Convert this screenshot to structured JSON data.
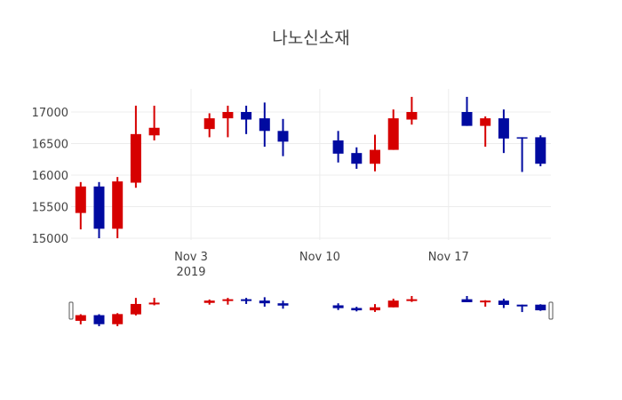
{
  "chart_data": {
    "type": "candlestick",
    "title": "나노신소재",
    "xlabel": "",
    "ylabel": "",
    "ylim": [
      14950,
      17350
    ],
    "yticks": [
      15000,
      15500,
      16000,
      16500,
      17000
    ],
    "xticks": [
      {
        "date": "2019-11-03",
        "label": "Nov 3",
        "sublabel": "2019"
      },
      {
        "date": "2019-11-10",
        "label": "Nov 10",
        "sublabel": ""
      },
      {
        "date": "2019-11-17",
        "label": "Nov 17",
        "sublabel": ""
      }
    ],
    "grid": true,
    "increasing_color": "#d60000",
    "decreasing_color": "#000aa0",
    "rangeslider": true,
    "candles": [
      {
        "date": "2019-10-28",
        "open": 15400,
        "high": 15890,
        "low": 15140,
        "close": 15820
      },
      {
        "date": "2019-10-29",
        "open": 15820,
        "high": 15890,
        "low": 15000,
        "close": 15150
      },
      {
        "date": "2019-10-30",
        "open": 15150,
        "high": 15970,
        "low": 15000,
        "close": 15900
      },
      {
        "date": "2019-10-31",
        "open": 15880,
        "high": 17100,
        "low": 15800,
        "close": 16650
      },
      {
        "date": "2019-11-01",
        "open": 16630,
        "high": 17100,
        "low": 16550,
        "close": 16750
      },
      {
        "date": "2019-11-04",
        "open": 16730,
        "high": 16980,
        "low": 16600,
        "close": 16900
      },
      {
        "date": "2019-11-05",
        "open": 16900,
        "high": 17100,
        "low": 16600,
        "close": 17000
      },
      {
        "date": "2019-11-06",
        "open": 17000,
        "high": 17100,
        "low": 16650,
        "close": 16880
      },
      {
        "date": "2019-11-07",
        "open": 16900,
        "high": 17150,
        "low": 16450,
        "close": 16700
      },
      {
        "date": "2019-11-08",
        "open": 16700,
        "high": 16890,
        "low": 16300,
        "close": 16530
      },
      {
        "date": "2019-11-11",
        "open": 16550,
        "high": 16700,
        "low": 16200,
        "close": 16340
      },
      {
        "date": "2019-11-12",
        "open": 16350,
        "high": 16440,
        "low": 16100,
        "close": 16180
      },
      {
        "date": "2019-11-13",
        "open": 16180,
        "high": 16640,
        "low": 16060,
        "close": 16400
      },
      {
        "date": "2019-11-14",
        "open": 16400,
        "high": 17040,
        "low": 16400,
        "close": 16900
      },
      {
        "date": "2019-11-15",
        "open": 16880,
        "high": 17240,
        "low": 16800,
        "close": 17000
      },
      {
        "date": "2019-11-18",
        "open": 17000,
        "high": 17240,
        "low": 16780,
        "close": 16780
      },
      {
        "date": "2019-11-19",
        "open": 16780,
        "high": 16930,
        "low": 16450,
        "close": 16900
      },
      {
        "date": "2019-11-20",
        "open": 16900,
        "high": 17040,
        "low": 16350,
        "close": 16580
      },
      {
        "date": "2019-11-21",
        "open": 16600,
        "high": 16600,
        "low": 16050,
        "close": 16590
      },
      {
        "date": "2019-11-22",
        "open": 16600,
        "high": 16630,
        "low": 16140,
        "close": 16180
      }
    ]
  }
}
